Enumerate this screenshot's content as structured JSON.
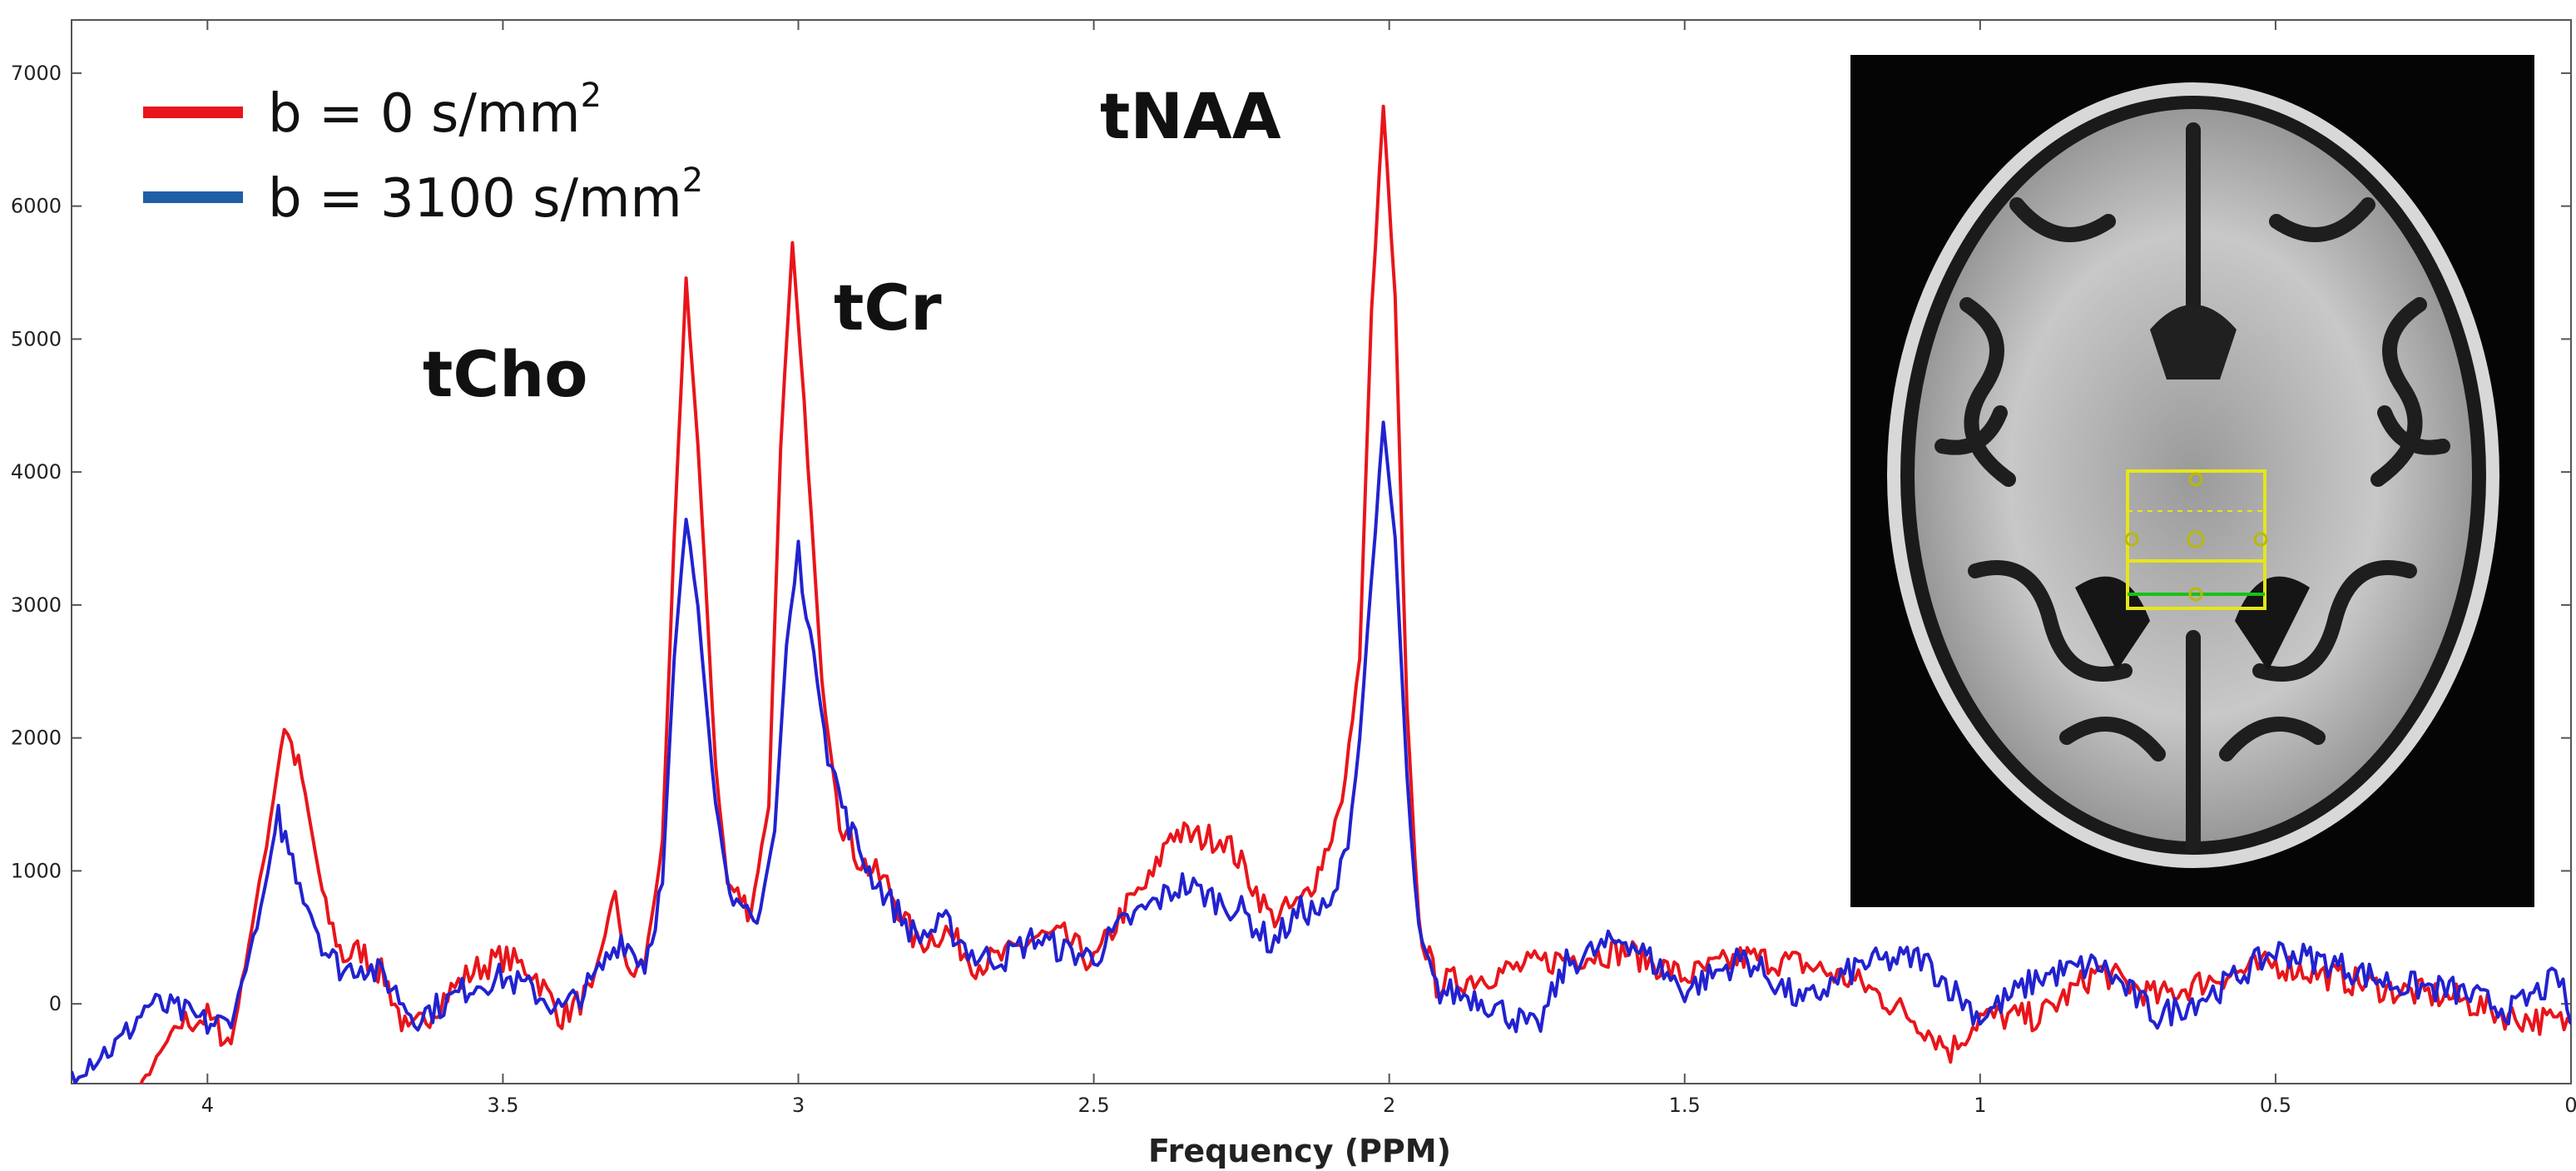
{
  "chart_data": {
    "type": "line",
    "title": "",
    "xlabel": "Frequency (PPM)",
    "ylabel": "",
    "x_reversed": true,
    "xlim": [
      4.23,
      0.0
    ],
    "ylim": [
      -600,
      7400
    ],
    "x_ticks": [
      4,
      3.5,
      3,
      2.5,
      2,
      1.5,
      1,
      0.5,
      0
    ],
    "x_tick_labels": [
      "4",
      "3.5",
      "3",
      "2.5",
      "2",
      "1.5",
      "1",
      "0.5",
      "0"
    ],
    "y_ticks": [
      0,
      1000,
      2000,
      3000,
      4000,
      5000,
      6000,
      7000
    ],
    "y_tick_labels": [
      "0",
      "1000",
      "2000",
      "3000",
      "4000",
      "5000",
      "6000",
      "7000"
    ],
    "grid": false,
    "legend_position": "top-left",
    "legend": [
      {
        "prefix": "b = 0 s/mm",
        "sup": "2",
        "color": "#e8151b"
      },
      {
        "prefix": "b = 3100 s/mm",
        "sup": "2",
        "color": "#1f5fa8"
      }
    ],
    "annotations": [
      {
        "text": "tCho",
        "x": 3.19,
        "y": 5450
      },
      {
        "text": "tCr",
        "x": 3.02,
        "y": 5700
      },
      {
        "text": "tNAA",
        "x": 2.01,
        "y": 6750
      }
    ],
    "series": [
      {
        "color": "#e8151b",
        "points": [
          [
            4.23,
            -1500
          ],
          [
            4.05,
            -150
          ],
          [
            4.0,
            -100
          ],
          [
            3.96,
            -300
          ],
          [
            3.9,
            1200
          ],
          [
            3.87,
            2100
          ],
          [
            3.84,
            1700
          ],
          [
            3.8,
            700
          ],
          [
            3.77,
            350
          ],
          [
            3.74,
            400
          ],
          [
            3.7,
            200
          ],
          [
            3.66,
            -250
          ],
          [
            3.6,
            50
          ],
          [
            3.55,
            250
          ],
          [
            3.5,
            350
          ],
          [
            3.45,
            250
          ],
          [
            3.4,
            -100
          ],
          [
            3.35,
            100
          ],
          [
            3.31,
            850
          ],
          [
            3.29,
            200
          ],
          [
            3.26,
            300
          ],
          [
            3.23,
            1200
          ],
          [
            3.21,
            3500
          ],
          [
            3.19,
            5450
          ],
          [
            3.17,
            4200
          ],
          [
            3.14,
            1800
          ],
          [
            3.12,
            900
          ],
          [
            3.08,
            700
          ],
          [
            3.05,
            1500
          ],
          [
            3.03,
            4200
          ],
          [
            3.01,
            5700
          ],
          [
            2.99,
            4500
          ],
          [
            2.96,
            2400
          ],
          [
            2.93,
            1400
          ],
          [
            2.9,
            1100
          ],
          [
            2.85,
            900
          ],
          [
            2.8,
            450
          ],
          [
            2.75,
            550
          ],
          [
            2.7,
            300
          ],
          [
            2.65,
            350
          ],
          [
            2.6,
            500
          ],
          [
            2.55,
            500
          ],
          [
            2.5,
            300
          ],
          [
            2.45,
            700
          ],
          [
            2.4,
            950
          ],
          [
            2.37,
            1300
          ],
          [
            2.33,
            1250
          ],
          [
            2.28,
            1250
          ],
          [
            2.25,
            1050
          ],
          [
            2.2,
            650
          ],
          [
            2.15,
            750
          ],
          [
            2.12,
            1000
          ],
          [
            2.08,
            1500
          ],
          [
            2.05,
            2600
          ],
          [
            2.03,
            5200
          ],
          [
            2.01,
            6750
          ],
          [
            1.99,
            5300
          ],
          [
            1.97,
            2200
          ],
          [
            1.95,
            600
          ],
          [
            1.92,
            150
          ],
          [
            1.85,
            200
          ],
          [
            1.7,
            350
          ],
          [
            1.6,
            400
          ],
          [
            1.5,
            200
          ],
          [
            1.4,
            350
          ],
          [
            1.3,
            300
          ],
          [
            1.2,
            150
          ],
          [
            1.1,
            -150
          ],
          [
            1.05,
            -350
          ],
          [
            1.0,
            -100
          ],
          [
            0.9,
            -100
          ],
          [
            0.8,
            250
          ],
          [
            0.7,
            50
          ],
          [
            0.6,
            200
          ],
          [
            0.5,
            300
          ],
          [
            0.4,
            200
          ],
          [
            0.3,
            100
          ],
          [
            0.2,
            50
          ],
          [
            0.1,
            -100
          ],
          [
            0.0,
            -150
          ]
        ]
      },
      {
        "color": "#2222d0",
        "points": [
          [
            4.23,
            -500
          ],
          [
            4.15,
            -300
          ],
          [
            4.1,
            0
          ],
          [
            4.05,
            -50
          ],
          [
            4.0,
            -150
          ],
          [
            3.96,
            -150
          ],
          [
            3.91,
            700
          ],
          [
            3.88,
            1400
          ],
          [
            3.85,
            1000
          ],
          [
            3.8,
            400
          ],
          [
            3.77,
            250
          ],
          [
            3.74,
            300
          ],
          [
            3.7,
            200
          ],
          [
            3.65,
            -100
          ],
          [
            3.6,
            0
          ],
          [
            3.55,
            150
          ],
          [
            3.5,
            200
          ],
          [
            3.45,
            100
          ],
          [
            3.4,
            -50
          ],
          [
            3.35,
            150
          ],
          [
            3.3,
            500
          ],
          [
            3.26,
            300
          ],
          [
            3.23,
            900
          ],
          [
            3.21,
            2600
          ],
          [
            3.19,
            3650
          ],
          [
            3.17,
            3000
          ],
          [
            3.14,
            1500
          ],
          [
            3.11,
            700
          ],
          [
            3.07,
            600
          ],
          [
            3.04,
            1300
          ],
          [
            3.02,
            2700
          ],
          [
            3.0,
            3400
          ],
          [
            2.98,
            2800
          ],
          [
            2.95,
            1900
          ],
          [
            2.92,
            1400
          ],
          [
            2.88,
            1000
          ],
          [
            2.85,
            800
          ],
          [
            2.8,
            500
          ],
          [
            2.75,
            600
          ],
          [
            2.7,
            350
          ],
          [
            2.65,
            350
          ],
          [
            2.6,
            500
          ],
          [
            2.55,
            400
          ],
          [
            2.5,
            350
          ],
          [
            2.45,
            600
          ],
          [
            2.4,
            750
          ],
          [
            2.35,
            900
          ],
          [
            2.3,
            800
          ],
          [
            2.25,
            700
          ],
          [
            2.2,
            450
          ],
          [
            2.15,
            700
          ],
          [
            2.1,
            700
          ],
          [
            2.07,
            1200
          ],
          [
            2.05,
            2000
          ],
          [
            2.03,
            3200
          ],
          [
            2.01,
            4350
          ],
          [
            1.99,
            3500
          ],
          [
            1.97,
            1700
          ],
          [
            1.95,
            500
          ],
          [
            1.92,
            100
          ],
          [
            1.85,
            50
          ],
          [
            1.75,
            -200
          ],
          [
            1.7,
            300
          ],
          [
            1.6,
            500
          ],
          [
            1.5,
            100
          ],
          [
            1.4,
            350
          ],
          [
            1.3,
            0
          ],
          [
            1.2,
            300
          ],
          [
            1.1,
            350
          ],
          [
            1.0,
            -100
          ],
          [
            0.9,
            200
          ],
          [
            0.8,
            300
          ],
          [
            0.7,
            -100
          ],
          [
            0.6,
            100
          ],
          [
            0.5,
            400
          ],
          [
            0.4,
            300
          ],
          [
            0.3,
            150
          ],
          [
            0.2,
            100
          ],
          [
            0.1,
            -50
          ],
          [
            0.02,
            200
          ],
          [
            0.0,
            -150
          ]
        ]
      }
    ]
  },
  "inset": {
    "description_icon": "brain-mri-icon",
    "roi_color": "#e6e619",
    "roi_line_color": "#18c018"
  }
}
